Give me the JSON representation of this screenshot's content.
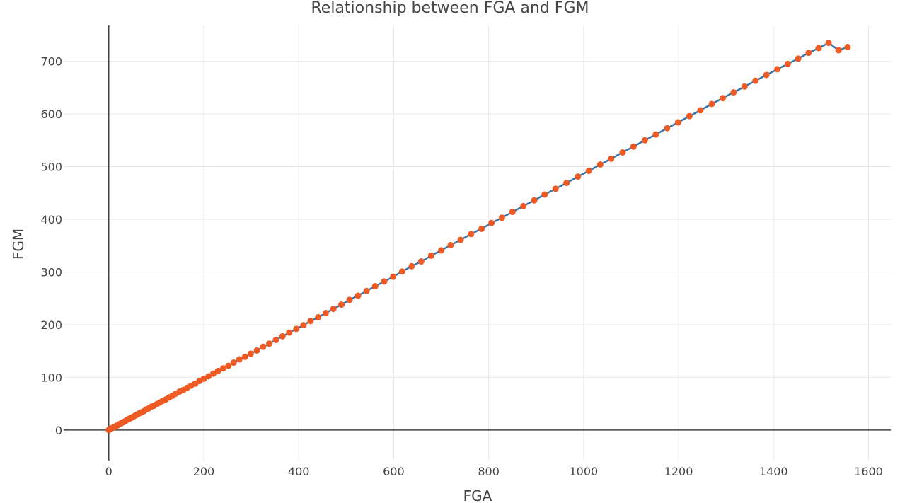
{
  "chart_data": {
    "type": "scatter",
    "mode": "lines+markers",
    "title": "Relationship between FGA and FGM",
    "xlabel": "FGA",
    "ylabel": "FGM",
    "xlim": [
      -95,
      1647
    ],
    "ylim": [
      -58,
      768
    ],
    "xticks": [
      0,
      200,
      400,
      600,
      800,
      1000,
      1200,
      1400,
      1600
    ],
    "yticks": [
      0,
      100,
      200,
      300,
      400,
      500,
      600,
      700
    ],
    "grid": true,
    "legend": "none",
    "colors": {
      "line": "#3a74a9",
      "marker": "#ee5a24",
      "grid": "#e8e8e8",
      "zeroline": "#444444",
      "text": "#444444"
    },
    "series": [
      {
        "x": [
          0,
          1,
          2,
          4,
          6,
          8,
          10,
          13,
          16,
          19,
          22,
          25,
          28,
          31,
          35,
          38,
          42,
          45,
          49,
          53,
          57,
          61,
          65,
          70,
          74,
          79,
          84,
          89,
          95,
          101,
          107,
          113,
          120,
          127,
          134,
          141,
          149,
          157,
          165,
          173,
          182,
          191,
          200,
          210,
          220,
          230,
          241,
          252,
          263,
          275,
          287,
          299,
          312,
          325,
          338,
          352,
          366,
          380,
          395,
          410,
          425,
          441,
          457,
          473,
          490,
          507,
          525,
          543,
          561,
          580,
          599,
          618,
          638,
          658,
          679,
          700,
          720,
          741,
          763,
          785,
          806,
          828,
          850,
          873,
          896,
          918,
          941,
          964,
          988,
          1011,
          1035,
          1058,
          1082,
          1105,
          1129,
          1152,
          1176,
          1199,
          1223,
          1246,
          1270,
          1293,
          1316,
          1339,
          1362,
          1385,
          1408,
          1430,
          1452,
          1474,
          1495,
          1516,
          1537,
          1556
        ],
        "y": [
          0,
          1,
          1,
          2,
          3,
          4,
          5,
          6,
          8,
          9,
          11,
          12,
          14,
          15,
          17,
          19,
          21,
          22,
          24,
          26,
          28,
          30,
          32,
          34,
          36,
          39,
          41,
          44,
          46,
          49,
          52,
          55,
          58,
          62,
          65,
          69,
          73,
          76,
          80,
          84,
          88,
          93,
          97,
          102,
          107,
          112,
          117,
          122,
          128,
          134,
          139,
          145,
          151,
          158,
          164,
          171,
          178,
          185,
          192,
          199,
          207,
          214,
          222,
          230,
          238,
          247,
          255,
          264,
          273,
          282,
          291,
          301,
          311,
          320,
          331,
          341,
          351,
          361,
          372,
          382,
          393,
          403,
          414,
          425,
          436,
          447,
          458,
          469,
          481,
          492,
          504,
          515,
          527,
          538,
          550,
          561,
          573,
          584,
          596,
          607,
          619,
          630,
          641,
          652,
          663,
          674,
          685,
          695,
          705,
          716,
          725,
          735,
          721,
          727
        ]
      }
    ]
  }
}
